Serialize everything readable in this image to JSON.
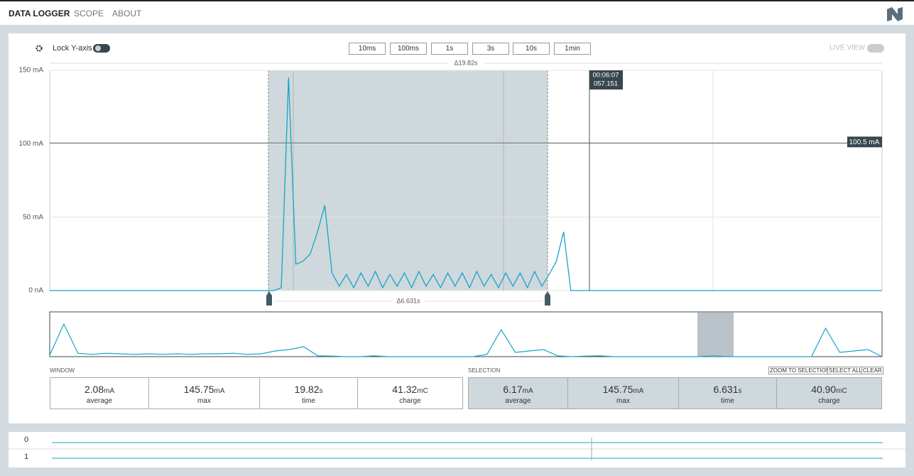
{
  "nav": {
    "tabs": [
      "DATA LOGGER",
      "SCOPE",
      "ABOUT"
    ]
  },
  "toolbar": {
    "lock_label": "Lock Y-axis",
    "windows": [
      "10ms",
      "100ms",
      "1s",
      "3s",
      "10s",
      "1min"
    ],
    "live_view": "LIVE VIEW"
  },
  "chart_data": {
    "type": "line",
    "color": "#14a5c9",
    "grid": true,
    "window_delta": "Δ19.82s",
    "selection_delta": "Δ6.631s",
    "cursor_time": "00:06:07",
    "cursor_value": "057.151",
    "marker": {
      "value": 100.5,
      "label": "100.5 mA"
    },
    "ylim": [
      0,
      150
    ],
    "yticks": [
      {
        "value": 0,
        "label": "0 nA"
      },
      {
        "value": 50,
        "label": "50 mA"
      },
      {
        "value": 100,
        "label": "100 mA"
      },
      {
        "value": 150,
        "label": "150 mA"
      }
    ],
    "values": [
      0,
      0,
      0,
      0,
      0,
      0,
      0,
      0,
      0,
      0,
      0,
      0,
      0,
      0,
      0,
      0,
      0,
      0,
      0,
      0,
      0,
      0,
      0,
      0,
      0,
      0,
      0,
      0,
      0,
      0,
      0,
      0,
      2,
      145,
      18,
      20,
      25,
      40,
      58,
      12,
      3,
      11,
      2,
      12,
      3,
      13,
      2,
      11,
      3,
      12,
      2,
      13,
      3,
      11,
      2,
      12,
      3,
      12,
      2,
      13,
      3,
      11,
      2,
      12,
      3,
      12,
      2,
      13,
      3,
      11,
      20,
      40,
      0,
      0,
      0,
      0,
      0,
      0,
      0,
      0,
      0,
      0,
      0,
      0,
      0,
      0,
      0,
      0,
      0,
      0,
      0,
      0,
      0,
      0,
      0,
      0,
      0,
      0,
      0,
      0,
      0,
      0,
      0,
      0,
      0,
      0,
      0,
      0,
      0,
      0,
      0,
      0,
      0,
      0,
      0,
      0
    ],
    "overview_values": [
      5,
      115,
      12,
      8,
      12,
      10,
      8,
      10,
      8,
      10,
      8,
      10,
      10,
      12,
      8,
      10,
      20,
      25,
      35,
      3,
      2,
      0,
      0,
      3,
      0,
      0,
      0,
      0,
      0,
      0,
      0,
      8,
      95,
      15,
      20,
      25,
      3,
      0,
      2,
      3,
      0,
      0,
      0,
      0,
      0,
      0,
      0,
      3,
      0,
      0,
      0,
      0,
      0,
      0,
      0,
      100,
      15,
      20,
      25,
      0
    ]
  },
  "window": {
    "title": "WINDOW",
    "stats": [
      {
        "value": "2.08",
        "unit": "mA",
        "label": "average"
      },
      {
        "value": "145.75",
        "unit": "mA",
        "label": "max"
      },
      {
        "value": "19.82",
        "unit": "s",
        "label": "time"
      },
      {
        "value": "41.32",
        "unit": "mC",
        "label": "charge"
      }
    ]
  },
  "selection": {
    "title": "SELECTION",
    "buttons": [
      "ZOOM TO SELECTION",
      "SELECT ALL",
      "CLEAR"
    ],
    "stats": [
      {
        "value": "6.17",
        "unit": "mA",
        "label": "average"
      },
      {
        "value": "145.75",
        "unit": "mA",
        "label": "max"
      },
      {
        "value": "6.631",
        "unit": "s",
        "label": "time"
      },
      {
        "value": "40.90",
        "unit": "mC",
        "label": "charge"
      }
    ]
  },
  "digital": {
    "channels": [
      "0",
      "1"
    ]
  }
}
